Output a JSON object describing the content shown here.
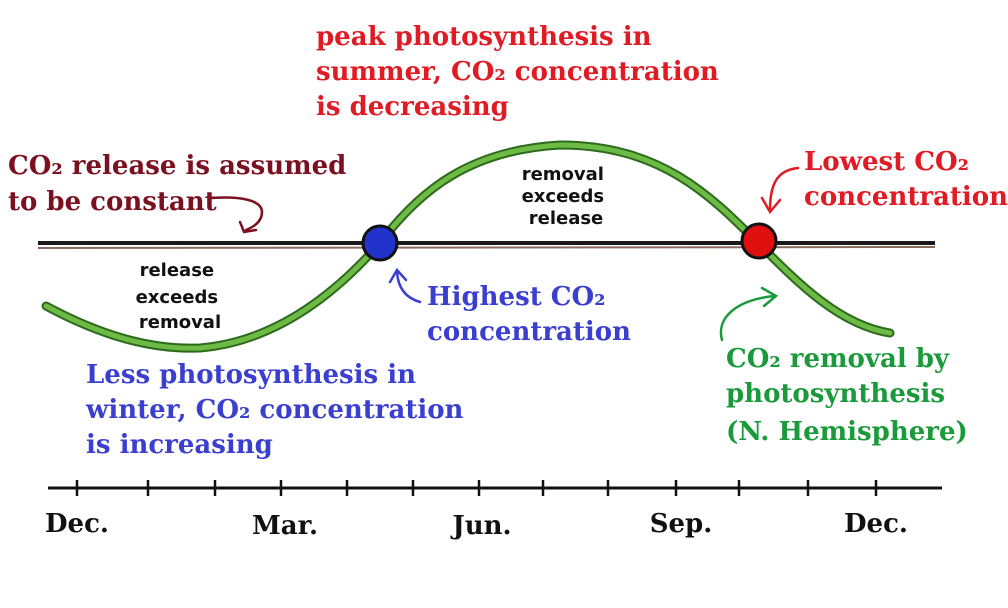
{
  "labels": {
    "peak": [
      "peak photosynthesis in",
      "summer, CO₂ concentration",
      "is decreasing"
    ],
    "release_const": [
      "CO₂ release is assumed",
      "to be constant"
    ],
    "lowest": [
      "Lowest CO₂",
      "concentration"
    ],
    "removal_exceeds": [
      "removal",
      "exceeds",
      "release"
    ],
    "release_exceeds": [
      "release",
      "exceeds",
      "removal"
    ],
    "highest": [
      "Highest CO₂",
      "concentration"
    ],
    "less": [
      "Less photosynthesis in",
      "winter, CO₂ concentration",
      "is increasing"
    ],
    "removal_by": [
      "CO₂ removal by",
      "photosynthesis",
      "(N. Hemisphere)"
    ]
  },
  "months": [
    "Dec.",
    "Mar.",
    "Jun.",
    "Sep.",
    "Dec."
  ],
  "colors": {
    "red": "#e01b24",
    "dark_red": "#7a1020",
    "blue": "#3a3fd0",
    "green": "#1a9a3a",
    "curve": "#5aa83a",
    "curve_dark": "#2d6a1d",
    "line": "#1a1a1a",
    "marker_blue": "#2233cc",
    "marker_red": "#e01010"
  },
  "markers": [
    {
      "name": "highest-co2-marker"
    },
    {
      "name": "lowest-co2-marker"
    }
  ]
}
